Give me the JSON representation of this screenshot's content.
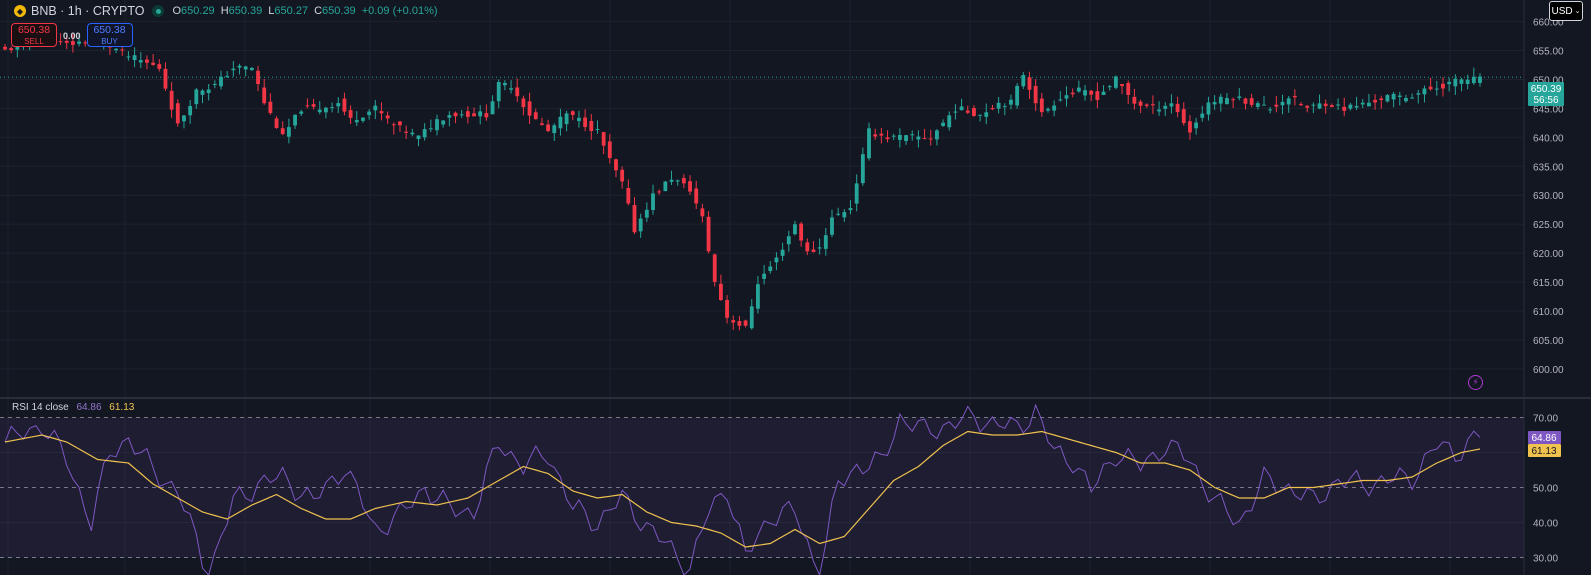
{
  "header": {
    "symbol": "BNB · 1h · CRYPTO",
    "ohlc": {
      "o_key": "O",
      "o": "650.29",
      "h_key": "H",
      "h": "650.39",
      "l_key": "L",
      "l": "650.27",
      "c_key": "C",
      "c": "650.39",
      "change": "+0.09 (+0.01%)"
    }
  },
  "trade": {
    "sell_price": "650.38",
    "sell_label": "SELL",
    "spread": "0.00",
    "buy_price": "650.38",
    "buy_label": "BUY"
  },
  "currency": {
    "label": "USD"
  },
  "rsi_legend": {
    "name": "RSI 14 close",
    "rsi": "64.86",
    "ma": "61.13"
  },
  "last_price": {
    "price": "650.39",
    "countdown": "56:56"
  },
  "colors": {
    "up": "#26a69a",
    "down": "#f23645",
    "rsi": "#7e57c2",
    "rsi_ma": "#f0c24e",
    "bg": "#131722"
  },
  "icons": {
    "symbol": "bnb-coin-icon",
    "status": "market-open-icon",
    "currency": "chevron-down-icon",
    "alert": "lightning-icon"
  },
  "chart_data": [
    {
      "type": "candlestick",
      "ylim": [
        596,
        662
      ],
      "y_ticks": [
        "660.00",
        "655.00",
        "650.00",
        "645.00",
        "640.00",
        "635.00",
        "630.00",
        "625.00",
        "620.00",
        "615.00",
        "610.00",
        "605.00",
        "600.00"
      ],
      "close_anchors": [
        [
          0,
          655
        ],
        [
          5,
          657
        ],
        [
          10,
          656
        ],
        [
          15,
          657
        ],
        [
          20,
          654
        ],
        [
          25,
          652
        ],
        [
          28,
          642
        ],
        [
          31,
          648
        ],
        [
          34,
          649
        ],
        [
          37,
          652
        ],
        [
          40,
          652
        ],
        [
          42,
          646
        ],
        [
          45,
          640
        ],
        [
          48,
          645
        ],
        [
          51,
          645
        ],
        [
          54,
          646
        ],
        [
          56,
          643
        ],
        [
          60,
          645
        ],
        [
          63,
          642
        ],
        [
          67,
          640
        ],
        [
          70,
          643
        ],
        [
          72,
          644
        ],
        [
          74,
          644
        ],
        [
          78,
          644
        ],
        [
          80,
          649
        ],
        [
          82,
          649
        ],
        [
          85,
          644
        ],
        [
          88,
          641
        ],
        [
          91,
          644
        ],
        [
          93,
          643
        ],
        [
          96,
          641
        ],
        [
          98,
          636
        ],
        [
          100,
          632
        ],
        [
          102,
          624
        ],
        [
          105,
          630
        ],
        [
          108,
          633
        ],
        [
          111,
          631
        ],
        [
          113,
          626
        ],
        [
          115,
          615
        ],
        [
          117,
          609
        ],
        [
          120,
          607
        ],
        [
          122,
          615
        ],
        [
          125,
          619
        ],
        [
          128,
          625
        ],
        [
          130,
          620
        ],
        [
          132,
          621
        ],
        [
          134,
          626
        ],
        [
          137,
          628
        ],
        [
          140,
          641
        ],
        [
          143,
          640
        ],
        [
          147,
          640
        ],
        [
          150,
          640
        ],
        [
          154,
          645
        ],
        [
          158,
          644
        ],
        [
          161,
          646
        ],
        [
          163,
          646
        ],
        [
          165,
          651
        ],
        [
          168,
          644
        ],
        [
          171,
          647
        ],
        [
          174,
          648
        ],
        [
          177,
          647
        ],
        [
          180,
          650
        ],
        [
          183,
          646
        ],
        [
          186,
          645
        ],
        [
          189,
          646
        ],
        [
          192,
          641
        ],
        [
          195,
          646
        ],
        [
          199,
          647
        ],
        [
          202,
          646
        ],
        [
          205,
          645
        ],
        [
          208,
          647
        ],
        [
          211,
          645
        ],
        [
          214,
          646
        ],
        [
          217,
          645
        ],
        [
          221,
          646
        ],
        [
          224,
          647
        ],
        [
          227,
          647
        ],
        [
          230,
          648
        ],
        [
          233,
          649
        ],
        [
          236,
          650
        ],
        [
          239,
          650
        ]
      ],
      "last_price": 650.39
    },
    {
      "type": "line",
      "title": "RSI 14 close",
      "ylim": [
        25,
        75
      ],
      "y_ticks": [
        "70.00",
        "60.00",
        "50.00",
        "40.00",
        "30.00"
      ],
      "band": [
        30,
        70
      ],
      "midline": 50,
      "series": [
        {
          "name": "RSI",
          "anchors": [
            [
              0,
              63
            ],
            [
              6,
              68
            ],
            [
              10,
              58
            ],
            [
              14,
              40
            ],
            [
              17,
              60
            ],
            [
              20,
              64
            ],
            [
              24,
              55
            ],
            [
              28,
              49
            ],
            [
              33,
              25
            ],
            [
              37,
              46
            ],
            [
              41,
              51
            ],
            [
              45,
              53
            ],
            [
              50,
              46
            ],
            [
              55,
              56
            ],
            [
              60,
              38
            ],
            [
              64,
              42
            ],
            [
              68,
              50
            ],
            [
              72,
              44
            ],
            [
              76,
              43
            ],
            [
              80,
              63
            ],
            [
              84,
              56
            ],
            [
              88,
              60
            ],
            [
              92,
              44
            ],
            [
              96,
              40
            ],
            [
              100,
              47
            ],
            [
              104,
              39
            ],
            [
              108,
              32
            ],
            [
              111,
              27
            ],
            [
              114,
              43
            ],
            [
              117,
              50
            ],
            [
              120,
              30
            ],
            [
              124,
              42
            ],
            [
              128,
              43
            ],
            [
              132,
              25
            ],
            [
              135,
              51
            ],
            [
              138,
              56
            ],
            [
              142,
              57
            ],
            [
              145,
              70
            ],
            [
              149,
              66
            ],
            [
              153,
              68
            ],
            [
              157,
              70
            ],
            [
              161,
              68
            ],
            [
              164,
              67
            ],
            [
              167,
              72
            ],
            [
              170,
              60
            ],
            [
              173,
              58
            ],
            [
              176,
              49
            ],
            [
              180,
              60
            ],
            [
              184,
              56
            ],
            [
              188,
              62
            ],
            [
              192,
              58
            ],
            [
              196,
              46
            ],
            [
              200,
              40
            ],
            [
              204,
              52
            ],
            [
              208,
              50
            ],
            [
              212,
              46
            ],
            [
              216,
              52
            ],
            [
              220,
              51
            ],
            [
              224,
              52
            ],
            [
              228,
              53
            ],
            [
              232,
              62
            ],
            [
              235,
              60
            ],
            [
              239,
              65
            ]
          ],
          "last": 64.86
        },
        {
          "name": "MA",
          "anchors": [
            [
              0,
              63
            ],
            [
              6,
              65
            ],
            [
              10,
              63
            ],
            [
              15,
              58
            ],
            [
              20,
              57
            ],
            [
              24,
              51
            ],
            [
              28,
              47
            ],
            [
              32,
              43
            ],
            [
              36,
              41
            ],
            [
              40,
              45
            ],
            [
              44,
              48
            ],
            [
              48,
              44
            ],
            [
              52,
              41
            ],
            [
              56,
              41
            ],
            [
              60,
              44
            ],
            [
              65,
              46
            ],
            [
              70,
              45
            ],
            [
              75,
              47
            ],
            [
              80,
              52
            ],
            [
              84,
              56
            ],
            [
              88,
              54
            ],
            [
              92,
              49
            ],
            [
              96,
              47
            ],
            [
              100,
              48
            ],
            [
              104,
              43
            ],
            [
              108,
              40
            ],
            [
              112,
              39
            ],
            [
              116,
              37
            ],
            [
              120,
              33
            ],
            [
              124,
              34
            ],
            [
              128,
              38
            ],
            [
              132,
              34
            ],
            [
              136,
              36
            ],
            [
              140,
              44
            ],
            [
              144,
              52
            ],
            [
              148,
              56
            ],
            [
              152,
              62
            ],
            [
              156,
              66
            ],
            [
              160,
              65
            ],
            [
              164,
              65
            ],
            [
              168,
              66
            ],
            [
              172,
              64
            ],
            [
              176,
              62
            ],
            [
              180,
              60
            ],
            [
              184,
              57
            ],
            [
              188,
              57
            ],
            [
              192,
              55
            ],
            [
              196,
              50
            ],
            [
              200,
              47
            ],
            [
              204,
              47
            ],
            [
              208,
              50
            ],
            [
              212,
              50
            ],
            [
              216,
              51
            ],
            [
              220,
              52
            ],
            [
              224,
              52
            ],
            [
              228,
              53
            ],
            [
              232,
              57
            ],
            [
              236,
              60
            ],
            [
              239,
              61
            ]
          ],
          "last": 61.13
        }
      ]
    }
  ]
}
